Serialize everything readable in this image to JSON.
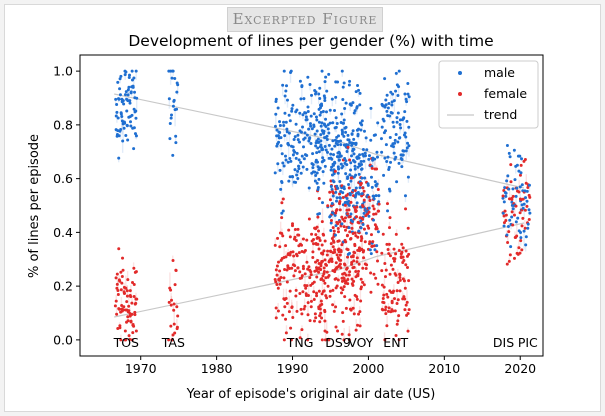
{
  "badge": "Excerpted Figure",
  "chart_data": {
    "type": "scatter",
    "title": "Development of lines per gender (%) with time",
    "xlabel": "Year of episode's original air date (US)",
    "ylabel": "% of lines per episode",
    "xlim": [
      1962,
      2023
    ],
    "ylim": [
      -0.06,
      1.06
    ],
    "x_ticks": [
      1970,
      1980,
      1990,
      2000,
      2010,
      2020
    ],
    "y_ticks": [
      0.0,
      0.2,
      0.4,
      0.6,
      0.8,
      1.0
    ],
    "grid": false,
    "legend_position": "top-right",
    "colors": {
      "male": "#1f6fd1",
      "female": "#e22a2a",
      "trend": "#c8c8c8"
    },
    "series": [
      {
        "name": "male",
        "kind": "points"
      },
      {
        "name": "female",
        "kind": "points"
      },
      {
        "name": "trend",
        "kind": "line"
      }
    ],
    "shows": [
      {
        "label": "TOS",
        "start": 1966.7,
        "end": 1969.5,
        "n": 79,
        "male_center": 0.87,
        "male_spread": 0.09
      },
      {
        "label": "TAS",
        "start": 1973.7,
        "end": 1974.9,
        "n": 22,
        "male_center": 0.86,
        "male_spread": 0.11
      },
      {
        "label": "TNG",
        "start": 1987.7,
        "end": 1994.4,
        "n": 178,
        "male_center": 0.78,
        "male_spread": 0.12
      },
      {
        "label": "DS9",
        "start": 1993.0,
        "end": 1999.4,
        "n": 176,
        "male_center": 0.74,
        "male_spread": 0.13
      },
      {
        "label": "VOY",
        "start": 1995.0,
        "end": 2001.4,
        "n": 172,
        "male_center": 0.58,
        "male_spread": 0.12
      },
      {
        "label": "ENT",
        "start": 2001.7,
        "end": 2005.4,
        "n": 98,
        "male_center": 0.77,
        "male_spread": 0.11
      },
      {
        "label": "DIS",
        "start": 2017.7,
        "end": 2020.2,
        "n": 42,
        "male_center": 0.55,
        "male_spread": 0.1
      },
      {
        "label": "PIC",
        "start": 2020.0,
        "end": 2021.3,
        "n": 20,
        "male_center": 0.5,
        "male_spread": 0.08
      }
    ],
    "trend": {
      "male": [
        [
          1966.5,
          0.915
        ],
        [
          1996.0,
          0.74
        ],
        [
          2001.0,
          0.69
        ],
        [
          2020.5,
          0.565
        ]
      ],
      "female": [
        [
          1966.5,
          0.085
        ],
        [
          1996.0,
          0.26
        ],
        [
          2001.0,
          0.31
        ],
        [
          2020.5,
          0.435
        ]
      ]
    }
  }
}
